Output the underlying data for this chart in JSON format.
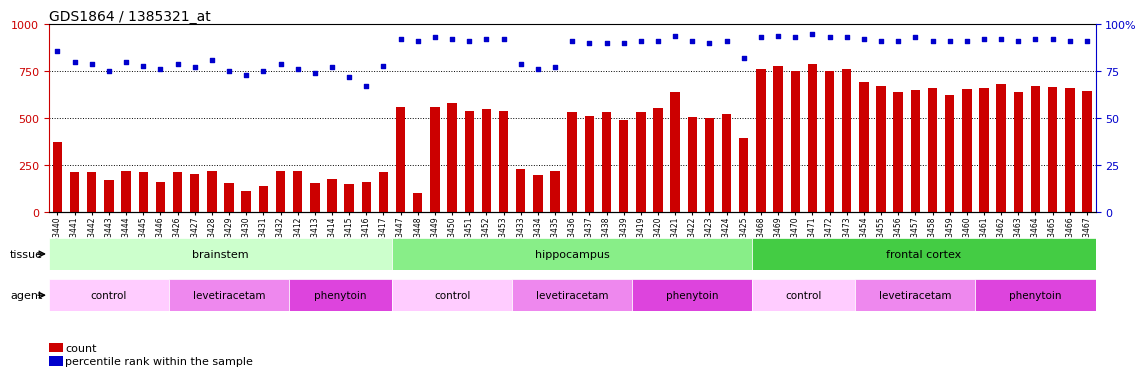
{
  "title": "GDS1864 / 1385321_at",
  "samples": [
    "GSM53440",
    "GSM53441",
    "GSM53442",
    "GSM53443",
    "GSM53444",
    "GSM53445",
    "GSM53446",
    "GSM53426",
    "GSM53427",
    "GSM53428",
    "GSM53429",
    "GSM53430",
    "GSM53431",
    "GSM53432",
    "GSM53412",
    "GSM53413",
    "GSM53414",
    "GSM53415",
    "GSM53416",
    "GSM53417",
    "GSM53447",
    "GSM53448",
    "GSM53449",
    "GSM53450",
    "GSM53451",
    "GSM53452",
    "GSM53453",
    "GSM53433",
    "GSM53434",
    "GSM53435",
    "GSM53436",
    "GSM53437",
    "GSM53438",
    "GSM53439",
    "GSM53419",
    "GSM53420",
    "GSM53421",
    "GSM53422",
    "GSM53423",
    "GSM53424",
    "GSM53425",
    "GSM53468",
    "GSM53469",
    "GSM53470",
    "GSM53471",
    "GSM53472",
    "GSM53473",
    "GSM53454",
    "GSM53455",
    "GSM53456",
    "GSM53457",
    "GSM53458",
    "GSM53459",
    "GSM53460",
    "GSM53461",
    "GSM53462",
    "GSM53463",
    "GSM53464",
    "GSM53465",
    "GSM53466",
    "GSM53467"
  ],
  "counts": [
    370,
    210,
    210,
    170,
    215,
    210,
    160,
    210,
    200,
    220,
    155,
    110,
    140,
    215,
    220,
    155,
    175,
    150,
    160,
    210,
    560,
    100,
    560,
    580,
    540,
    550,
    540,
    230,
    195,
    220,
    530,
    510,
    530,
    490,
    530,
    555,
    640,
    505,
    500,
    520,
    395,
    760,
    780,
    750,
    790,
    750,
    760,
    690,
    670,
    640,
    650,
    660,
    625,
    655,
    660,
    680,
    640,
    670,
    665,
    660,
    645
  ],
  "percentiles": [
    86,
    80,
    79,
    75,
    80,
    78,
    76,
    79,
    77,
    81,
    75,
    73,
    75,
    79,
    76,
    74,
    77,
    72,
    67,
    78,
    92,
    91,
    93,
    92,
    91,
    92,
    92,
    79,
    76,
    77,
    91,
    90,
    90,
    90,
    91,
    91,
    94,
    91,
    90,
    91,
    82,
    93,
    94,
    93,
    95,
    93,
    93,
    92,
    91,
    91,
    93,
    91,
    91,
    91,
    92,
    92,
    91,
    92,
    92,
    91,
    91
  ],
  "tissue_groups": [
    {
      "label": "brainstem",
      "start": 0,
      "end": 19,
      "color": "#ccffcc"
    },
    {
      "label": "hippocampus",
      "start": 20,
      "end": 40,
      "color": "#88ee88"
    },
    {
      "label": "frontal cortex",
      "start": 41,
      "end": 60,
      "color": "#44cc44"
    }
  ],
  "agent_groups": [
    {
      "label": "control",
      "start": 0,
      "end": 6,
      "color": "#ffccff"
    },
    {
      "label": "levetiracetam",
      "start": 7,
      "end": 13,
      "color": "#ee88ee"
    },
    {
      "label": "phenytoin",
      "start": 14,
      "end": 19,
      "color": "#dd44dd"
    },
    {
      "label": "control",
      "start": 20,
      "end": 26,
      "color": "#ffccff"
    },
    {
      "label": "levetiracetam",
      "start": 27,
      "end": 33,
      "color": "#ee88ee"
    },
    {
      "label": "phenytoin",
      "start": 34,
      "end": 40,
      "color": "#dd44dd"
    },
    {
      "label": "control",
      "start": 41,
      "end": 46,
      "color": "#ffccff"
    },
    {
      "label": "levetiracetam",
      "start": 47,
      "end": 53,
      "color": "#ee88ee"
    },
    {
      "label": "phenytoin",
      "start": 54,
      "end": 60,
      "color": "#dd44dd"
    }
  ],
  "bar_color": "#cc0000",
  "dot_color": "#0000cc",
  "left_ylim": [
    0,
    1000
  ],
  "right_ylim": [
    0,
    100
  ],
  "left_yticks": [
    0,
    250,
    500,
    750,
    1000
  ],
  "right_yticks": [
    0,
    25,
    50,
    75,
    100
  ],
  "grid_values": [
    250,
    500,
    750
  ],
  "title_fontsize": 10,
  "tick_fontsize": 5.5,
  "label_fontsize": 8
}
